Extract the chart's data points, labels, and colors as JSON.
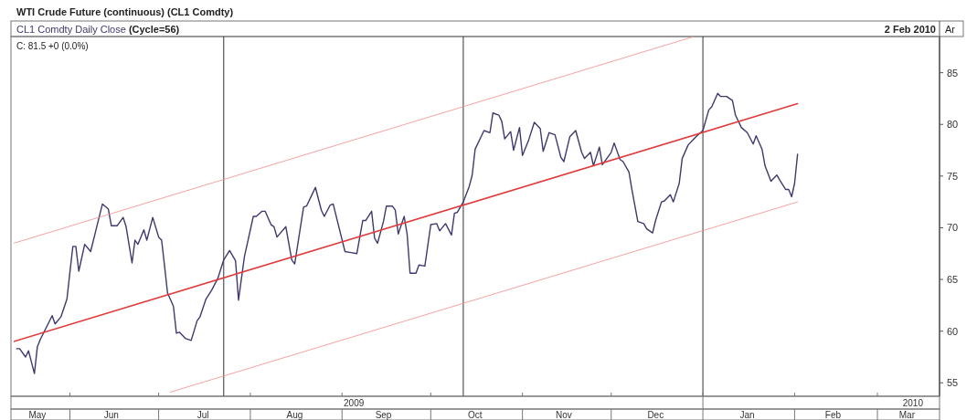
{
  "chart_data": {
    "type": "line",
    "title": "WTI Crude Future (continuous) (CL1 Comdty)",
    "annotations": [
      "(Cycle=56)",
      "C: 81.5 +0 (0.0%)",
      "2 Feb 2010",
      "Ar"
    ],
    "legend": "top left",
    "xlim": [
      "2009-05-13",
      "2010-03-22"
    ],
    "xticks": [
      {
        "value": "2009-05-21",
        "label": "May"
      },
      {
        "value": "2009-06-01",
        "label": null
      },
      {
        "value": "2009-06-15",
        "label": "Jun"
      },
      {
        "value": "2009-07-01",
        "label": null
      },
      {
        "value": "2009-07-16",
        "label": "Jul"
      },
      {
        "value": "2009-08-01",
        "label": null
      },
      {
        "value": "2009-08-16",
        "label": "Aug"
      },
      {
        "value": "2009-09-01",
        "label": null
      },
      {
        "value": "2009-09-15",
        "label": "Sep"
      },
      {
        "value": "2009-10-01",
        "label": null
      },
      {
        "value": "2009-10-16",
        "label": "Oct"
      },
      {
        "value": "2009-11-01",
        "label": null
      },
      {
        "value": "2009-11-15",
        "label": "Nov"
      },
      {
        "value": "2009-12-01",
        "label": null
      },
      {
        "value": "2009-12-16",
        "label": "Dec"
      },
      {
        "value": "2010-01-01",
        "label": null
      },
      {
        "value": "2010-01-16",
        "label": "Jan"
      },
      {
        "value": "2010-02-01",
        "label": null
      },
      {
        "value": "2010-02-14",
        "label": "Feb"
      },
      {
        "value": "2010-03-01",
        "label": null
      },
      {
        "value": "2010-03-11",
        "label": "Mar"
      }
    ],
    "x2lim": [
      "2009-05-13",
      "2010-03-22"
    ],
    "x2ticks": [
      {
        "value": "2009-09-05",
        "label": "2009"
      },
      {
        "value": "2010-01-01",
        "label": null
      },
      {
        "value": "2010-03-13",
        "label": "2010"
      }
    ],
    "ylim": [
      53.7,
      88.5
    ],
    "yticks": [
      55,
      60,
      65,
      70,
      75,
      80,
      85
    ],
    "ref_lines": [
      {
        "axis": "x",
        "value": "2009-07-23",
        "color": "#333333"
      },
      {
        "axis": "x",
        "value": "2009-10-12",
        "color": "#333333"
      },
      {
        "axis": "x",
        "value": "2010-01-01",
        "color": "#333333"
      }
    ],
    "series": [
      {
        "name": "CL1 Comdty Daily Close",
        "color": "#3d3a6e",
        "x": [
          "2009-05-14",
          "2009-05-15",
          "2009-05-17",
          "2009-05-18",
          "2009-05-20",
          "2009-05-21",
          "2009-05-22",
          "2009-05-26",
          "2009-05-27",
          "2009-05-29",
          "2009-05-31",
          "2009-06-01",
          "2009-06-02",
          "2009-06-03",
          "2009-06-04",
          "2009-06-06",
          "2009-06-08",
          "2009-06-10",
          "2009-06-12",
          "2009-06-14",
          "2009-06-15",
          "2009-06-17",
          "2009-06-19",
          "2009-06-20",
          "2009-06-22",
          "2009-06-23",
          "2009-06-24",
          "2009-06-26",
          "2009-06-27",
          "2009-06-29",
          "2009-07-01",
          "2009-07-02",
          "2009-07-03",
          "2009-07-04",
          "2009-07-06",
          "2009-07-07",
          "2009-07-08",
          "2009-07-10",
          "2009-07-12",
          "2009-07-14",
          "2009-07-15",
          "2009-07-17",
          "2009-07-19",
          "2009-07-21",
          "2009-07-23",
          "2009-07-25",
          "2009-07-27",
          "2009-07-28",
          "2009-07-30",
          "2009-08-02",
          "2009-08-03",
          "2009-08-05",
          "2009-08-06",
          "2009-08-08",
          "2009-08-09",
          "2009-08-10",
          "2009-08-13",
          "2009-08-15",
          "2009-08-16",
          "2009-08-19",
          "2009-08-20",
          "2009-08-22",
          "2009-08-23",
          "2009-08-25",
          "2009-08-26",
          "2009-08-28",
          "2009-08-29",
          "2009-09-02",
          "2009-09-04",
          "2009-09-06",
          "2009-09-08",
          "2009-09-09",
          "2009-09-11",
          "2009-09-12",
          "2009-09-13",
          "2009-09-15",
          "2009-09-16",
          "2009-09-18",
          "2009-09-19",
          "2009-09-20",
          "2009-09-22",
          "2009-09-23",
          "2009-09-24",
          "2009-09-26",
          "2009-09-27",
          "2009-09-29",
          "2009-10-01",
          "2009-10-03",
          "2009-10-04",
          "2009-10-06",
          "2009-10-08",
          "2009-10-09",
          "2009-10-10",
          "2009-10-12",
          "2009-10-14",
          "2009-10-15",
          "2009-10-16",
          "2009-10-19",
          "2009-10-21",
          "2009-10-22",
          "2009-10-24",
          "2009-10-25",
          "2009-10-26",
          "2009-10-28",
          "2009-10-29",
          "2009-10-31",
          "2009-11-01",
          "2009-11-03",
          "2009-11-05",
          "2009-11-07",
          "2009-11-08",
          "2009-11-10",
          "2009-11-12",
          "2009-11-14",
          "2009-11-15",
          "2009-11-17",
          "2009-11-19",
          "2009-11-21",
          "2009-11-22",
          "2009-11-24",
          "2009-11-25",
          "2009-11-27",
          "2009-11-28",
          "2009-12-01",
          "2009-12-02",
          "2009-12-04",
          "2009-12-05",
          "2009-12-07",
          "2009-12-08",
          "2009-12-10",
          "2009-12-12",
          "2009-12-13",
          "2009-12-15",
          "2009-12-16",
          "2009-12-18",
          "2009-12-19",
          "2009-12-21",
          "2009-12-22",
          "2009-12-24",
          "2009-12-25",
          "2009-12-27",
          "2009-12-29",
          "2009-12-30",
          "2010-01-01",
          "2010-01-03",
          "2010-01-04",
          "2010-01-06",
          "2010-01-07",
          "2010-01-09",
          "2010-01-11",
          "2010-01-12",
          "2010-01-14",
          "2010-01-16",
          "2010-01-18",
          "2010-01-19",
          "2010-01-21",
          "2010-01-22",
          "2010-01-24",
          "2010-01-26",
          "2010-01-27",
          "2010-01-29",
          "2010-01-30",
          "2010-01-31",
          "2010-02-01",
          "2010-02-02"
        ],
        "values": [
          58.3,
          58.3,
          57.5,
          58.1,
          55.9,
          58.5,
          59.2,
          61.5,
          60.7,
          61.4,
          63.1,
          65.7,
          68.2,
          68.2,
          65.8,
          68.4,
          67.7,
          70.0,
          72.3,
          71.8,
          70.2,
          70.2,
          71.0,
          70.1,
          66.6,
          68.8,
          68.4,
          69.8,
          68.8,
          71.0,
          69.1,
          68.8,
          66.3,
          63.7,
          62.4,
          59.8,
          59.9,
          59.3,
          59.1,
          61.0,
          61.4,
          63.1,
          64.0,
          65.1,
          66.9,
          67.8,
          66.8,
          63.0,
          67.2,
          71.1,
          71.1,
          71.6,
          71.6,
          70.3,
          70.1,
          69.1,
          70.1,
          66.9,
          66.5,
          72.0,
          72.1,
          73.3,
          73.9,
          71.7,
          71.1,
          72.2,
          72.3,
          67.7,
          67.6,
          67.5,
          70.7,
          70.7,
          71.6,
          69.0,
          68.5,
          70.6,
          72.1,
          72.1,
          71.7,
          69.4,
          71.1,
          69.4,
          65.6,
          65.6,
          66.4,
          66.3,
          70.3,
          70.4,
          69.7,
          70.4,
          69.3,
          71.4,
          71.5,
          72.5,
          74.0,
          75.1,
          77.6,
          79.4,
          79.2,
          81.1,
          80.9,
          80.3,
          78.6,
          79.3,
          77.5,
          79.7,
          77.0,
          78.4,
          80.2,
          79.6,
          77.4,
          79.2,
          79.0,
          76.8,
          76.4,
          78.8,
          79.4,
          77.3,
          76.7,
          77.3,
          76.0,
          77.8,
          76.1,
          77.3,
          78.2,
          76.6,
          76.4,
          75.4,
          73.7,
          70.6,
          70.4,
          69.9,
          69.5,
          70.7,
          72.5,
          72.6,
          73.2,
          72.5,
          74.3,
          76.7,
          78.0,
          78.6,
          78.9,
          79.4,
          81.4,
          81.7,
          83.0,
          82.7,
          82.7,
          82.3,
          80.9,
          79.7,
          79.2,
          78.1,
          78.9,
          77.6,
          76.0,
          74.5,
          75.1,
          74.6,
          73.7,
          73.7,
          73.0,
          74.3,
          77.1
        ]
      },
      {
        "type": "line",
        "color": "#e23b3b",
        "x": [
          "2009-05-13",
          "2010-02-02"
        ],
        "values": [
          59.0,
          82.0
        ]
      },
      {
        "type": "line",
        "color": "#f28c8c",
        "x": [
          "2009-05-13",
          "2009-12-29"
        ],
        "values": [
          68.5,
          88.5
        ]
      },
      {
        "type": "line",
        "color": "#f28c8c",
        "x": [
          "2009-07-05",
          "2010-02-02"
        ],
        "values": [
          54.1,
          72.5
        ]
      }
    ]
  }
}
